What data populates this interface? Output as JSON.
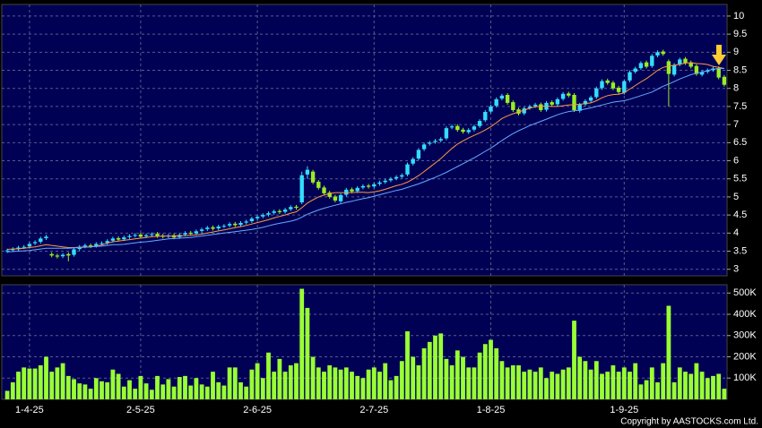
{
  "chart_data": [
    {
      "type": "candlestick",
      "categories": [
        null,
        null,
        null,
        null,
        "1-4-25",
        null,
        null,
        null,
        null,
        null,
        null,
        null,
        null,
        null,
        null,
        null,
        null,
        null,
        null,
        null,
        null,
        null,
        null,
        null,
        "2-5-25",
        null,
        null,
        null,
        null,
        null,
        null,
        null,
        null,
        null,
        null,
        null,
        null,
        null,
        null,
        null,
        null,
        null,
        null,
        null,
        null,
        "2-6-25",
        null,
        null,
        null,
        null,
        null,
        null,
        null,
        null,
        null,
        null,
        null,
        null,
        null,
        null,
        null,
        null,
        null,
        null,
        null,
        null,
        "2-7-25",
        null,
        null,
        null,
        null,
        null,
        null,
        null,
        null,
        null,
        null,
        null,
        null,
        null,
        null,
        null,
        null,
        null,
        null,
        null,
        null,
        "1-8-25",
        null,
        null,
        null,
        null,
        null,
        null,
        null,
        null,
        null,
        null,
        null,
        null,
        null,
        null,
        null,
        null,
        null,
        null,
        null,
        null,
        null,
        null,
        null,
        "1-9-25",
        null,
        null,
        null,
        null,
        null,
        null,
        null,
        null,
        null,
        null,
        null,
        null,
        null,
        null,
        null,
        null,
        null,
        null
      ],
      "open": [
        3.5,
        3.53,
        3.55,
        3.61,
        3.63,
        3.72,
        3.76,
        3.86,
        3.42,
        3.38,
        3.36,
        3.42,
        3.4,
        3.56,
        3.63,
        3.66,
        3.65,
        3.71,
        3.73,
        3.79,
        3.86,
        3.83,
        3.89,
        3.93,
        3.96,
        3.91,
        3.95,
        3.98,
        3.93,
        3.91,
        3.94,
        3.89,
        3.96,
        4.01,
        3.99,
        4.06,
        4.11,
        4.16,
        4.13,
        4.19,
        4.21,
        4.26,
        4.23,
        4.29,
        4.33,
        4.41,
        4.46,
        4.51,
        4.56,
        4.61,
        4.59,
        4.66,
        4.73,
        4.85,
        5.62,
        5.7,
        5.42,
        5.26,
        5.12,
        5.01,
        4.88,
        5.06,
        5.21,
        5.16,
        5.26,
        5.31,
        5.29,
        5.36,
        5.41,
        5.46,
        5.51,
        5.56,
        5.62,
        5.92,
        6.06,
        6.32,
        6.47,
        6.52,
        6.56,
        6.62,
        6.92,
        6.96,
        6.86,
        6.79,
        6.86,
        6.96,
        7.12,
        7.36,
        7.52,
        7.72,
        7.82,
        7.62,
        7.42,
        7.31,
        7.46,
        7.51,
        7.56,
        7.41,
        7.62,
        7.56,
        7.71,
        7.86,
        7.82,
        7.38,
        7.56,
        7.66,
        7.76,
        8.01,
        8.22,
        8.16,
        8.02,
        7.88,
        8.22,
        8.46,
        8.56,
        8.72,
        8.62,
        8.91,
        9.02,
        8.75,
        8.38,
        8.66,
        8.82,
        8.72,
        8.62,
        8.38,
        8.46,
        8.51,
        8.56,
        8.32
      ],
      "high": [
        3.57,
        3.61,
        3.65,
        3.67,
        3.75,
        3.8,
        3.9,
        3.95,
        3.47,
        3.43,
        3.45,
        3.47,
        3.6,
        3.67,
        3.71,
        3.71,
        3.75,
        3.77,
        3.83,
        3.9,
        3.91,
        3.93,
        3.97,
        4.0,
        4.01,
        3.99,
        4.02,
        4.03,
        3.98,
        3.98,
        3.99,
        4.0,
        4.05,
        4.06,
        4.1,
        4.15,
        4.2,
        4.21,
        4.23,
        4.25,
        4.3,
        4.31,
        4.33,
        4.37,
        4.45,
        4.5,
        4.55,
        4.6,
        4.65,
        4.66,
        4.7,
        4.77,
        4.78,
        5.7,
        5.85,
        5.75,
        5.47,
        5.31,
        5.17,
        5.06,
        5.1,
        5.25,
        5.26,
        5.3,
        5.35,
        5.36,
        5.4,
        5.45,
        5.5,
        5.55,
        5.6,
        5.65,
        5.95,
        6.1,
        6.35,
        6.5,
        6.55,
        6.6,
        6.65,
        6.95,
        7.0,
        7.01,
        6.91,
        6.9,
        7.0,
        7.15,
        7.4,
        7.55,
        7.75,
        7.85,
        7.87,
        7.67,
        7.47,
        7.5,
        7.55,
        7.6,
        7.61,
        7.65,
        7.67,
        7.75,
        7.9,
        7.91,
        7.87,
        7.6,
        7.7,
        7.8,
        8.05,
        8.25,
        8.27,
        8.21,
        8.07,
        8.25,
        8.5,
        8.6,
        8.75,
        8.77,
        8.95,
        9.05,
        9.07,
        8.8,
        8.7,
        8.85,
        8.87,
        8.77,
        8.67,
        8.5,
        8.55,
        8.6,
        8.61,
        8.37
      ],
      "low": [
        3.45,
        3.48,
        3.5,
        3.56,
        3.58,
        3.67,
        3.71,
        3.81,
        3.33,
        3.3,
        3.31,
        3.22,
        3.35,
        3.51,
        3.58,
        3.59,
        3.6,
        3.66,
        3.68,
        3.74,
        3.77,
        3.78,
        3.84,
        3.88,
        3.85,
        3.86,
        3.9,
        3.87,
        3.85,
        3.86,
        3.83,
        3.84,
        3.91,
        3.93,
        3.94,
        4.01,
        4.06,
        4.07,
        4.08,
        4.14,
        4.16,
        4.17,
        4.18,
        4.24,
        4.28,
        4.36,
        4.41,
        4.46,
        4.51,
        4.53,
        4.54,
        4.61,
        4.65,
        4.8,
        5.5,
        5.35,
        5.2,
        5.05,
        4.95,
        4.85,
        4.83,
        5.01,
        5.1,
        5.11,
        5.21,
        5.23,
        5.24,
        5.31,
        5.36,
        5.41,
        5.46,
        5.51,
        5.57,
        5.87,
        6.01,
        6.27,
        6.42,
        6.47,
        6.51,
        6.57,
        6.87,
        6.8,
        6.75,
        6.74,
        6.81,
        6.91,
        7.07,
        7.31,
        7.47,
        7.67,
        7.55,
        7.35,
        7.25,
        7.26,
        7.41,
        7.46,
        7.35,
        7.36,
        7.5,
        7.51,
        7.66,
        7.75,
        7.35,
        7.33,
        7.51,
        7.61,
        7.71,
        7.96,
        8.1,
        7.95,
        7.85,
        7.83,
        8.17,
        8.41,
        8.51,
        8.55,
        8.57,
        8.86,
        8.9,
        7.5,
        8.33,
        8.61,
        8.65,
        8.55,
        8.35,
        8.33,
        8.41,
        8.46,
        8.25,
        8.05
      ],
      "close": [
        3.52,
        3.56,
        3.6,
        3.62,
        3.7,
        3.75,
        3.85,
        3.9,
        3.38,
        3.35,
        3.4,
        3.38,
        3.55,
        3.62,
        3.66,
        3.64,
        3.7,
        3.72,
        3.78,
        3.85,
        3.82,
        3.88,
        3.92,
        3.95,
        3.9,
        3.94,
        3.97,
        3.92,
        3.9,
        3.93,
        3.88,
        3.95,
        4.0,
        3.98,
        4.05,
        4.1,
        4.15,
        4.12,
        4.18,
        4.2,
        4.25,
        4.22,
        4.28,
        4.32,
        4.4,
        4.45,
        4.5,
        4.55,
        4.6,
        4.58,
        4.65,
        4.72,
        4.7,
        5.6,
        5.75,
        5.4,
        5.25,
        5.1,
        5.0,
        4.9,
        5.05,
        5.2,
        5.15,
        5.25,
        5.3,
        5.28,
        5.35,
        5.4,
        5.45,
        5.5,
        5.55,
        5.6,
        5.9,
        6.05,
        6.3,
        6.45,
        6.5,
        6.55,
        6.6,
        6.9,
        6.95,
        6.85,
        6.8,
        6.85,
        6.95,
        7.1,
        7.35,
        7.5,
        7.7,
        7.8,
        7.6,
        7.4,
        7.3,
        7.45,
        7.5,
        7.55,
        7.4,
        7.6,
        7.55,
        7.7,
        7.85,
        7.8,
        7.4,
        7.55,
        7.65,
        7.75,
        8.0,
        8.2,
        8.15,
        8.0,
        7.9,
        8.2,
        8.45,
        8.55,
        8.7,
        8.6,
        8.9,
        9.0,
        8.95,
        8.4,
        8.65,
        8.8,
        8.7,
        8.6,
        8.4,
        8.45,
        8.5,
        8.55,
        8.3,
        8.1
      ],
      "up_color": "#33ddff",
      "down_color": "#99ee22",
      "series": [
        {
          "color": "#ff9944",
          "values": [
            3.55,
            3.56,
            3.57,
            3.58,
            3.6,
            3.62,
            3.65,
            3.68,
            3.66,
            3.64,
            3.62,
            3.6,
            3.6,
            3.61,
            3.62,
            3.62,
            3.64,
            3.67,
            3.72,
            3.76,
            3.78,
            3.8,
            3.82,
            3.84,
            3.86,
            3.88,
            3.9,
            3.91,
            3.92,
            3.92,
            3.92,
            3.93,
            3.93,
            3.94,
            3.95,
            3.97,
            4.0,
            4.03,
            4.06,
            4.09,
            4.12,
            4.15,
            4.18,
            4.21,
            4.25,
            4.29,
            4.33,
            4.37,
            4.42,
            4.46,
            4.5,
            4.55,
            4.59,
            4.7,
            4.83,
            4.92,
            5.0,
            5.05,
            5.09,
            5.12,
            5.12,
            5.12,
            5.12,
            5.13,
            5.13,
            5.12,
            5.14,
            5.17,
            5.21,
            5.26,
            5.31,
            5.35,
            5.41,
            5.49,
            5.59,
            5.7,
            5.82,
            5.94,
            6.06,
            6.2,
            6.34,
            6.46,
            6.55,
            6.63,
            6.7,
            6.77,
            6.85,
            6.94,
            7.05,
            7.17,
            7.24,
            7.3,
            7.35,
            7.4,
            7.45,
            7.49,
            7.5,
            7.51,
            7.5,
            7.5,
            7.52,
            7.54,
            7.55,
            7.56,
            7.58,
            7.6,
            7.66,
            7.74,
            7.8,
            7.83,
            7.84,
            7.88,
            7.98,
            8.08,
            8.18,
            8.27,
            8.38,
            8.5,
            8.58,
            8.62,
            8.64,
            8.67,
            8.7,
            8.71,
            8.69,
            8.68,
            8.66,
            8.61,
            8.58,
            8.55
          ]
        },
        {
          "color": "#66aaff",
          "values": [
            3.48,
            3.49,
            3.5,
            3.51,
            3.52,
            3.54,
            3.56,
            3.58,
            3.58,
            3.58,
            3.58,
            3.58,
            3.59,
            3.6,
            3.61,
            3.62,
            3.63,
            3.64,
            3.66,
            3.68,
            3.68,
            3.69,
            3.71,
            3.73,
            3.75,
            3.76,
            3.78,
            3.8,
            3.82,
            3.84,
            3.85,
            3.86,
            3.87,
            3.88,
            3.9,
            3.92,
            3.94,
            3.96,
            3.98,
            4.0,
            4.02,
            4.04,
            4.06,
            4.08,
            4.1,
            4.13,
            4.16,
            4.2,
            4.24,
            4.27,
            4.3,
            4.33,
            4.37,
            4.44,
            4.52,
            4.58,
            4.64,
            4.69,
            4.73,
            4.77,
            4.81,
            4.85,
            4.88,
            4.92,
            4.95,
            4.98,
            5.02,
            5.06,
            5.1,
            5.14,
            5.18,
            5.21,
            5.26,
            5.31,
            5.36,
            5.42,
            5.48,
            5.54,
            5.61,
            5.68,
            5.76,
            5.84,
            5.92,
            6.0,
            6.08,
            6.17,
            6.26,
            6.35,
            6.45,
            6.56,
            6.66,
            6.75,
            6.83,
            6.9,
            6.97,
            7.03,
            7.09,
            7.15,
            7.21,
            7.27,
            7.32,
            7.36,
            7.38,
            7.4,
            7.43,
            7.46,
            7.5,
            7.54,
            7.58,
            7.62,
            7.64,
            7.66,
            7.7,
            7.75,
            7.8,
            7.85,
            7.9,
            7.98,
            8.06,
            8.12,
            8.19,
            8.26,
            8.32,
            8.38,
            8.42,
            8.45,
            8.49,
            8.53,
            8.55,
            8.55
          ]
        }
      ],
      "ylim": [
        2.82,
        10.32
      ],
      "yticks": [
        3,
        3.5,
        4,
        4.5,
        5,
        5.5,
        6,
        6.5,
        7,
        7.5,
        8,
        8.5,
        9,
        9.5,
        10
      ],
      "grid": true
    },
    {
      "type": "bar",
      "color": "#99ff33",
      "values": [
        40000,
        80000,
        130000,
        150000,
        145000,
        145000,
        160000,
        200000,
        130000,
        150000,
        170000,
        110000,
        95000,
        75000,
        70000,
        50000,
        100000,
        85000,
        80000,
        140000,
        120000,
        60000,
        90000,
        50000,
        110000,
        75000,
        45000,
        110000,
        70000,
        95000,
        60000,
        105000,
        110000,
        65000,
        100000,
        70000,
        60000,
        130000,
        80000,
        65000,
        150000,
        150000,
        80000,
        60000,
        140000,
        170000,
        100000,
        220000,
        130000,
        190000,
        130000,
        160000,
        170000,
        520000,
        430000,
        200000,
        150000,
        130000,
        160000,
        150000,
        140000,
        150000,
        130000,
        110000,
        100000,
        140000,
        150000,
        130000,
        170000,
        90000,
        110000,
        180000,
        320000,
        200000,
        160000,
        240000,
        270000,
        300000,
        310000,
        190000,
        160000,
        230000,
        200000,
        150000,
        150000,
        220000,
        260000,
        280000,
        240000,
        180000,
        150000,
        160000,
        160000,
        130000,
        140000,
        130000,
        150000,
        100000,
        130000,
        120000,
        140000,
        150000,
        370000,
        200000,
        180000,
        140000,
        180000,
        120000,
        130000,
        160000,
        130000,
        150000,
        130000,
        170000,
        70000,
        90000,
        150000,
        80000,
        170000,
        440000,
        80000,
        150000,
        130000,
        120000,
        170000,
        130000,
        100000,
        110000,
        120000,
        50000
      ],
      "ylim": [
        0,
        539000
      ],
      "yticks": [
        {
          "value": 100000,
          "label": "100K"
        },
        {
          "value": 200000,
          "label": "200K"
        },
        {
          "value": 300000,
          "label": "300K"
        },
        {
          "value": 400000,
          "label": "400K"
        },
        {
          "value": 500000,
          "label": "500K"
        }
      ],
      "grid": true
    }
  ],
  "copyright": "Copyright by AASTOCKS.com Ltd."
}
